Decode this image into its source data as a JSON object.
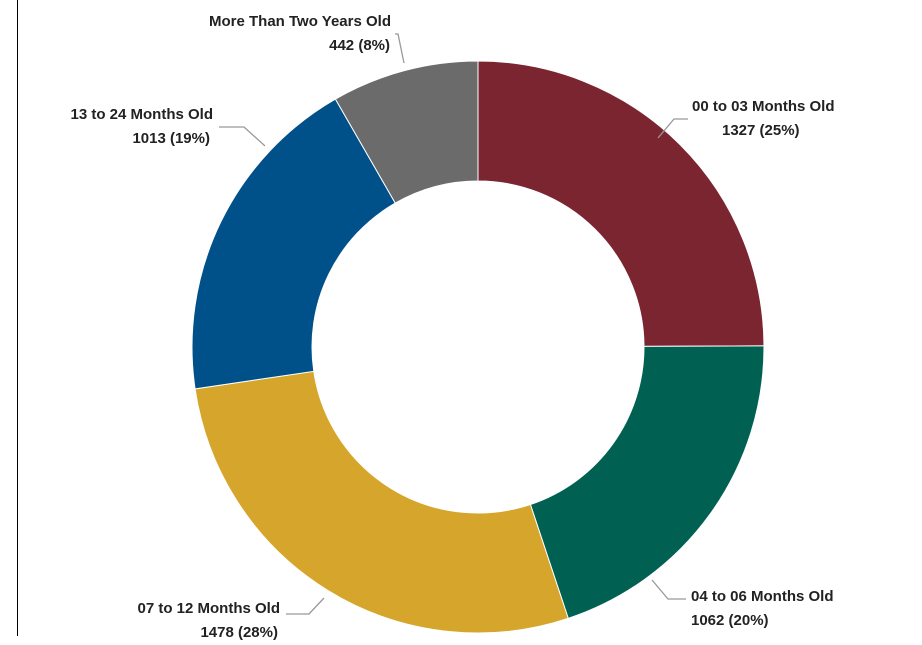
{
  "chart_data": {
    "type": "donut",
    "categories": [
      "00 to 03 Months Old",
      "04 to 06 Months Old",
      "07 to 12 Months Old",
      "13 to 24 Months Old",
      "More Than Two Years Old"
    ],
    "values": [
      1327,
      1062,
      1478,
      1013,
      442
    ],
    "value_labels": [
      "1327 (25%)",
      "1062 (20%)",
      "1478 (28%)",
      "1013 (19%)",
      "442 (8%)"
    ],
    "colors": [
      "#7a2530",
      "#006152",
      "#d6a52b",
      "#005089",
      "#6b6b6b"
    ]
  }
}
